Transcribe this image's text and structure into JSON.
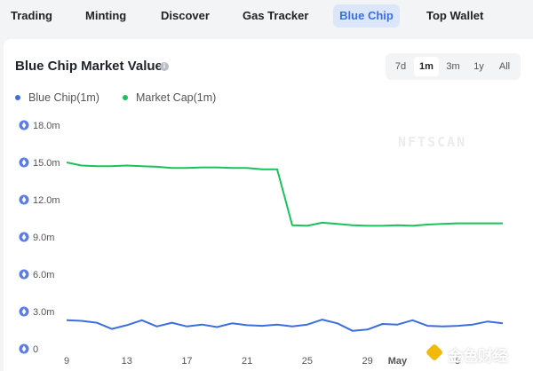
{
  "nav": {
    "tabs": [
      {
        "label": "Trading",
        "active": false
      },
      {
        "label": "Minting",
        "active": false
      },
      {
        "label": "Discover",
        "active": false
      },
      {
        "label": "Gas Tracker",
        "active": false
      },
      {
        "label": "Blue Chip",
        "active": true
      },
      {
        "label": "Top Wallet",
        "active": false
      }
    ]
  },
  "card": {
    "title": "Blue Chip Market Value",
    "info_icon": "info-icon",
    "ranges": [
      {
        "label": "7d",
        "active": false
      },
      {
        "label": "1m",
        "active": true
      },
      {
        "label": "3m",
        "active": false
      },
      {
        "label": "1y",
        "active": false
      },
      {
        "label": "All",
        "active": false
      }
    ]
  },
  "watermark": "NFTSCAN",
  "badge": {
    "text": "金色财经",
    "icon": "diamond-logo-icon"
  },
  "colors": {
    "blue_chip": "#3b6fe0",
    "market_cap": "#19c25a",
    "eth_icon": "#5b7ce6"
  },
  "chart_data": {
    "type": "line",
    "title": "Blue Chip Market Value",
    "legend_placement": "top-left",
    "grid": false,
    "y_unit_icon": "ethereum-icon",
    "ylim": [
      0,
      18
    ],
    "yticks": [
      {
        "value": 0,
        "label": "0"
      },
      {
        "value": 3,
        "label": "3.0m"
      },
      {
        "value": 6,
        "label": "6.0m"
      },
      {
        "value": 9,
        "label": "9.0m"
      },
      {
        "value": 12,
        "label": "12.0m"
      },
      {
        "value": 15,
        "label": "15.0m"
      },
      {
        "value": 18,
        "label": "18.0m"
      }
    ],
    "xticks": [
      {
        "index": 0,
        "label": "9",
        "bold": false
      },
      {
        "index": 4,
        "label": "13",
        "bold": false
      },
      {
        "index": 8,
        "label": "17",
        "bold": false
      },
      {
        "index": 12,
        "label": "21",
        "bold": false
      },
      {
        "index": 16,
        "label": "25",
        "bold": false
      },
      {
        "index": 20,
        "label": "29",
        "bold": false
      },
      {
        "index": 22,
        "label": "May",
        "bold": true
      },
      {
        "index": 26,
        "label": "5",
        "bold": false
      }
    ],
    "x_count": 30,
    "series": [
      {
        "name": "Blue Chip(1m)",
        "color": "#3b6fe0",
        "values": [
          2.3,
          2.25,
          2.1,
          1.6,
          1.9,
          2.3,
          1.8,
          2.1,
          1.8,
          1.95,
          1.75,
          2.05,
          1.9,
          1.85,
          1.95,
          1.8,
          1.95,
          2.35,
          2.05,
          1.45,
          1.55,
          2.0,
          1.95,
          2.3,
          1.85,
          1.8,
          1.85,
          1.95,
          2.2,
          2.05
        ]
      },
      {
        "name": "Market Cap(1m)",
        "color": "#19c25a",
        "values": [
          15.0,
          14.75,
          14.7,
          14.7,
          14.75,
          14.7,
          14.65,
          14.55,
          14.55,
          14.6,
          14.6,
          14.55,
          14.55,
          14.45,
          14.45,
          9.95,
          9.9,
          10.15,
          10.05,
          9.95,
          9.9,
          9.9,
          9.95,
          9.9,
          10.0,
          10.05,
          10.1,
          10.1,
          10.1,
          10.1
        ]
      }
    ]
  }
}
